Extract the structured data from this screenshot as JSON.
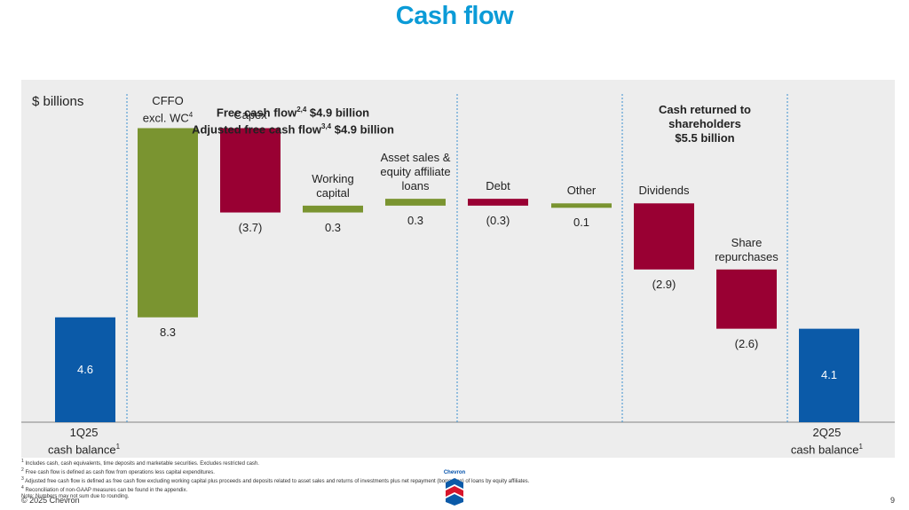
{
  "title": "Cash flow",
  "chart_data": {
    "type": "waterfall",
    "ylabel": "$ billions",
    "section_headers": {
      "free_cash_flow_line1": "Free cash flow",
      "free_cash_flow_sup1": "2,4",
      "free_cash_flow_value1": " $4.9 billion",
      "free_cash_flow_line2": "Adjusted free cash flow",
      "free_cash_flow_sup2": "3,4",
      "free_cash_flow_value2": " $4.9 billion",
      "shareholders_line1": "Cash returned to shareholders",
      "shareholders_line2": "$5.5 billion"
    },
    "bars": [
      {
        "key": "start",
        "label_lines": [
          "1Q25",
          "cash balance"
        ],
        "label_sup": "1",
        "value": 4.6,
        "value_label": "4.6",
        "kind": "total",
        "color": "#0b5aa8"
      },
      {
        "key": "cffo",
        "label_lines": [
          "CFFO",
          "excl. WC"
        ],
        "label_sup": "4",
        "value": 8.3,
        "value_label": "8.3",
        "kind": "increase",
        "color": "#7a9430"
      },
      {
        "key": "capex",
        "label_lines": [
          "Capex"
        ],
        "label_sup": "",
        "value": -3.7,
        "value_label": "(3.7)",
        "kind": "decrease",
        "color": "#990033"
      },
      {
        "key": "wc",
        "label_lines": [
          "Working",
          "capital"
        ],
        "label_sup": "",
        "value": 0.3,
        "value_label": "0.3",
        "kind": "increase",
        "color": "#7a9430"
      },
      {
        "key": "asset",
        "label_lines": [
          "Asset sales &",
          "equity affiliate",
          "loans"
        ],
        "label_sup": "",
        "value": 0.3,
        "value_label": "0.3",
        "kind": "increase",
        "color": "#7a9430"
      },
      {
        "key": "debt",
        "label_lines": [
          "Debt"
        ],
        "label_sup": "",
        "value": -0.3,
        "value_label": "(0.3)",
        "kind": "decrease",
        "color": "#990033"
      },
      {
        "key": "other",
        "label_lines": [
          "Other"
        ],
        "label_sup": "",
        "value": 0.1,
        "value_label": "0.1",
        "kind": "increase",
        "color": "#7a9430"
      },
      {
        "key": "div",
        "label_lines": [
          "Dividends"
        ],
        "label_sup": "",
        "value": -2.9,
        "value_label": "(2.9)",
        "kind": "decrease",
        "color": "#990033"
      },
      {
        "key": "rep",
        "label_lines": [
          "Share",
          "repurchases"
        ],
        "label_sup": "",
        "value": -2.6,
        "value_label": "(2.6)",
        "kind": "decrease",
        "color": "#990033"
      },
      {
        "key": "end",
        "label_lines": [
          "2Q25",
          "cash balance"
        ],
        "label_sup": "1",
        "value": 4.1,
        "value_label": "4.1",
        "kind": "total",
        "color": "#0b5aa8"
      }
    ]
  },
  "footnotes": [
    {
      "sup": "1",
      "text": "Includes cash, cash equivalents, time deposits and marketable securities. Excludes restricted cash."
    },
    {
      "sup": "2",
      "text": "Free cash flow is defined as cash flow from operations less capital expenditures."
    },
    {
      "sup": "3",
      "text": "Adjusted free cash flow is defined as free cash flow excluding working capital plus proceeds and deposits related to asset sales and returns of investments plus net repayment (borrowing) of loans by equity affiliates."
    },
    {
      "sup": "4",
      "text": "Reconciliation of non-GAAP measures can be found in the appendix."
    },
    {
      "sup": "",
      "text": "Note: Numbers may not sum due to rounding."
    }
  ],
  "copyright": "© 2025 Chevron",
  "page_number": "9",
  "logo_text": "Chevron"
}
